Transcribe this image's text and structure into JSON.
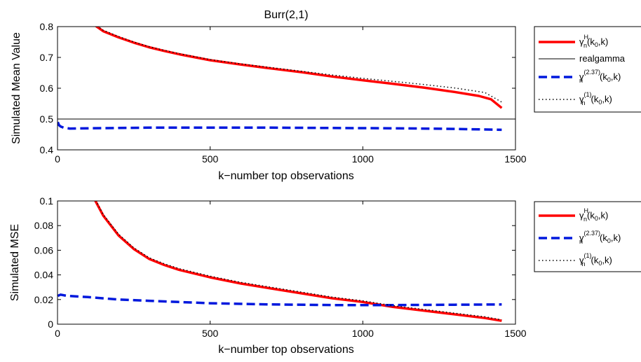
{
  "chart_data": [
    {
      "type": "line",
      "title": "Burr(2,1)",
      "xlabel": "k−number top observations",
      "ylabel": "Simulated Mean Value",
      "xlim": [
        0,
        1500
      ],
      "ylim": [
        0.4,
        0.8
      ],
      "x_ticks": [
        "0",
        "500",
        "1000",
        "1500"
      ],
      "y_ticks": [
        "0.4",
        "0.5",
        "0.6",
        "0.7",
        "0.8"
      ],
      "legend_position": "outside-right",
      "series": [
        {
          "name": "γn^H(k0,k)",
          "color": "#ff0000",
          "dash": "solid",
          "width": 3.5,
          "points": [
            [
              120,
              0.806
            ],
            [
              150,
              0.785
            ],
            [
              200,
              0.765
            ],
            [
              250,
              0.748
            ],
            [
              300,
              0.733
            ],
            [
              350,
              0.721
            ],
            [
              400,
              0.71
            ],
            [
              500,
              0.691
            ],
            [
              600,
              0.677
            ],
            [
              700,
              0.664
            ],
            [
              800,
              0.652
            ],
            [
              900,
              0.638
            ],
            [
              1000,
              0.626
            ],
            [
              1100,
              0.614
            ],
            [
              1200,
              0.602
            ],
            [
              1300,
              0.588
            ],
            [
              1380,
              0.575
            ],
            [
              1420,
              0.564
            ],
            [
              1455,
              0.536
            ]
          ]
        },
        {
          "name": "realgamma",
          "color": "#000000",
          "dash": "solid",
          "width": 1,
          "points": [
            [
              0,
              0.5
            ],
            [
              1500,
              0.5
            ]
          ]
        },
        {
          "name": "γn^(2.37)(k0,k)",
          "color": "#0018dd",
          "dash": "dash",
          "width": 3.5,
          "points": [
            [
              1,
              0.49
            ],
            [
              5,
              0.48
            ],
            [
              10,
              0.476
            ],
            [
              20,
              0.472
            ],
            [
              40,
              0.469
            ],
            [
              100,
              0.47
            ],
            [
              300,
              0.472
            ],
            [
              500,
              0.472
            ],
            [
              700,
              0.472
            ],
            [
              900,
              0.471
            ],
            [
              1100,
              0.47
            ],
            [
              1300,
              0.468
            ],
            [
              1455,
              0.465
            ]
          ]
        },
        {
          "name": "γn^(1)(k0,k)",
          "color": "#000000",
          "dash": "dot",
          "width": 1.5,
          "points": [
            [
              120,
              0.81
            ],
            [
              150,
              0.788
            ],
            [
              200,
              0.768
            ],
            [
              250,
              0.75
            ],
            [
              300,
              0.735
            ],
            [
              350,
              0.723
            ],
            [
              400,
              0.712
            ],
            [
              500,
              0.693
            ],
            [
              600,
              0.679
            ],
            [
              700,
              0.667
            ],
            [
              800,
              0.655
            ],
            [
              900,
              0.643
            ],
            [
              1000,
              0.632
            ],
            [
              1100,
              0.622
            ],
            [
              1200,
              0.612
            ],
            [
              1300,
              0.601
            ],
            [
              1400,
              0.586
            ],
            [
              1455,
              0.555
            ]
          ]
        }
      ]
    },
    {
      "type": "line",
      "title": "",
      "xlabel": "k−number top observations",
      "ylabel": "Simulated MSE",
      "xlim": [
        0,
        1500
      ],
      "ylim": [
        0,
        0.1
      ],
      "x_ticks": [
        "0",
        "500",
        "1000",
        "1500"
      ],
      "y_ticks": [
        "0",
        "0.02",
        "0.04",
        "0.06",
        "0.08",
        "0.1"
      ],
      "legend_position": "outside-right",
      "series": [
        {
          "name": "γn^H(k0,k)",
          "color": "#ff0000",
          "dash": "solid",
          "width": 3.5,
          "points": [
            [
              120,
              0.102
            ],
            [
              150,
              0.088
            ],
            [
              200,
              0.072
            ],
            [
              250,
              0.061
            ],
            [
              300,
              0.053
            ],
            [
              350,
              0.048
            ],
            [
              400,
              0.044
            ],
            [
              500,
              0.038
            ],
            [
              600,
              0.033
            ],
            [
              700,
              0.029
            ],
            [
              800,
              0.025
            ],
            [
              900,
              0.021
            ],
            [
              1000,
              0.018
            ],
            [
              1100,
              0.014
            ],
            [
              1200,
              0.011
            ],
            [
              1300,
              0.008
            ],
            [
              1400,
              0.005
            ],
            [
              1455,
              0.0028
            ]
          ]
        },
        {
          "name": "γn^(2.37)(k0,k)",
          "color": "#0018dd",
          "dash": "dash",
          "width": 3.5,
          "points": [
            [
              1,
              0.023
            ],
            [
              10,
              0.024
            ],
            [
              30,
              0.023
            ],
            [
              100,
              0.022
            ],
            [
              200,
              0.02
            ],
            [
              300,
              0.019
            ],
            [
              500,
              0.017
            ],
            [
              700,
              0.016
            ],
            [
              900,
              0.0155
            ],
            [
              1100,
              0.0155
            ],
            [
              1300,
              0.0158
            ],
            [
              1455,
              0.016
            ]
          ]
        },
        {
          "name": "γn^(1)(k0,k)",
          "color": "#000000",
          "dash": "dot",
          "width": 1.5,
          "points": [
            [
              120,
              0.103
            ],
            [
              150,
              0.089
            ],
            [
              200,
              0.073
            ],
            [
              250,
              0.062
            ],
            [
              300,
              0.054
            ],
            [
              350,
              0.049
            ],
            [
              400,
              0.045
            ],
            [
              500,
              0.039
            ],
            [
              600,
              0.034
            ],
            [
              700,
              0.03
            ],
            [
              800,
              0.026
            ],
            [
              900,
              0.022
            ],
            [
              1000,
              0.019
            ],
            [
              1100,
              0.015
            ],
            [
              1200,
              0.012
            ],
            [
              1300,
              0.009
            ],
            [
              1400,
              0.006
            ],
            [
              1455,
              0.0035
            ]
          ]
        }
      ]
    }
  ]
}
